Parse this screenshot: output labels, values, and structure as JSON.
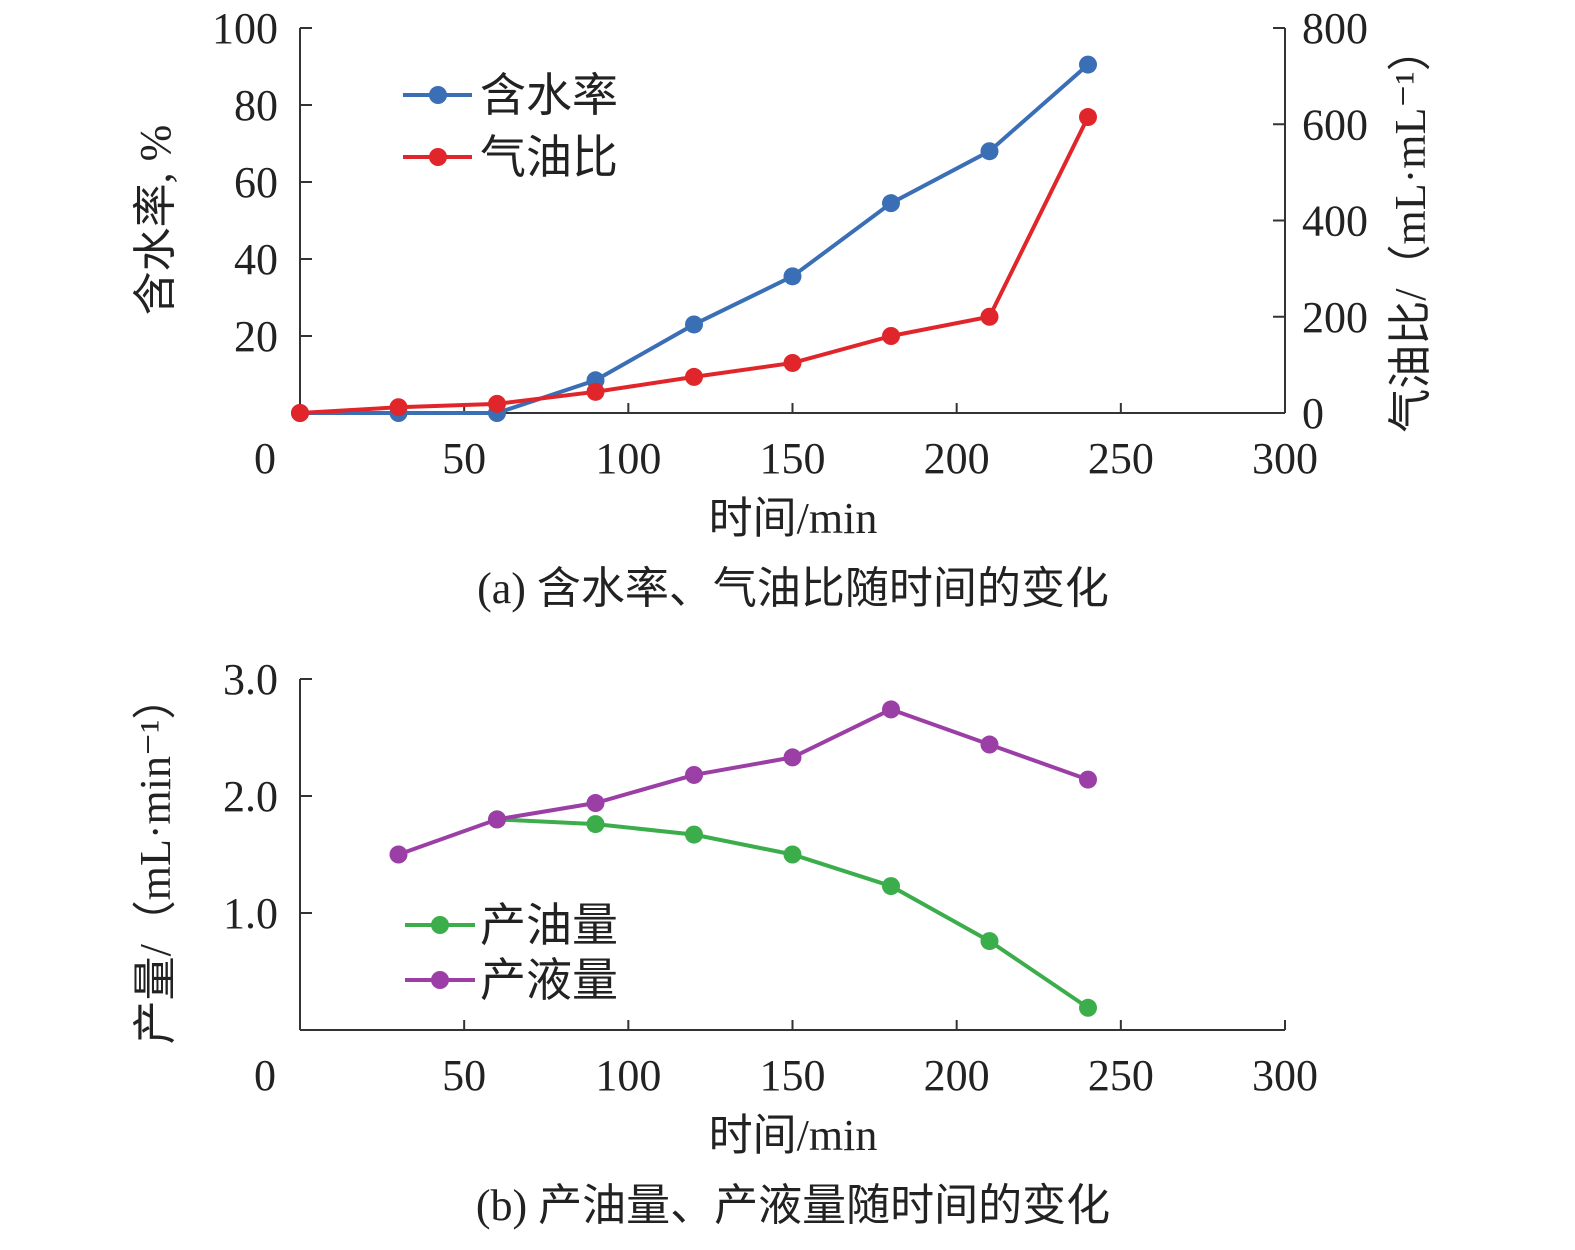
{
  "chart_data": [
    {
      "type": "line",
      "title": "",
      "caption": "(a) 含水率、气油比随时间的变化",
      "xlabel": "时间/min",
      "ylabel": "含水率, %",
      "y2label": "气油比/（mL·mL⁻¹）",
      "xlim": [
        0,
        300
      ],
      "ylim": [
        0,
        100
      ],
      "y2lim": [
        0,
        800
      ],
      "xticks": [
        "0",
        "50",
        "100",
        "150",
        "200",
        "250",
        "300"
      ],
      "yticks": [
        "20",
        "40",
        "60",
        "80",
        "100"
      ],
      "y2ticks": [
        "0",
        "200",
        "400",
        "600",
        "800"
      ],
      "legend": "top-left",
      "x": [
        0,
        30,
        60,
        90,
        120,
        150,
        180,
        210,
        240
      ],
      "series": [
        {
          "name": "含水率",
          "axis": "left",
          "color": "#3a6fb6",
          "values": [
            0,
            0,
            0,
            8.5,
            23,
            35.5,
            54.5,
            68,
            90.5
          ]
        },
        {
          "name": "气油比",
          "axis": "right",
          "color": "#e0262b",
          "values": [
            0,
            12,
            19,
            44,
            75,
            104,
            160,
            200,
            615
          ]
        }
      ]
    },
    {
      "type": "line",
      "title": "",
      "caption": "(b) 产油量、产液量随时间的变化",
      "xlabel": "时间/min",
      "ylabel": "产量/（mL·min⁻¹）",
      "xlim": [
        0,
        300
      ],
      "ylim": [
        0,
        3
      ],
      "xticks": [
        "0",
        "50",
        "100",
        "150",
        "200",
        "250",
        "300"
      ],
      "yticks": [
        "1.0",
        "2.0",
        "3.0"
      ],
      "legend": "bottom-left",
      "series": [
        {
          "name": "产油量",
          "color": "#3cad4b",
          "x": [
            60,
            90,
            120,
            150,
            180,
            210,
            240
          ],
          "values": [
            1.8,
            1.76,
            1.67,
            1.5,
            1.23,
            0.76,
            0.19
          ]
        },
        {
          "name": "产液量",
          "color": "#9b3fa6",
          "x": [
            30,
            60,
            90,
            120,
            150,
            180,
            210,
            240
          ],
          "values": [
            1.5,
            1.8,
            1.94,
            2.18,
            2.33,
            2.74,
            2.44,
            2.14
          ]
        }
      ]
    }
  ]
}
